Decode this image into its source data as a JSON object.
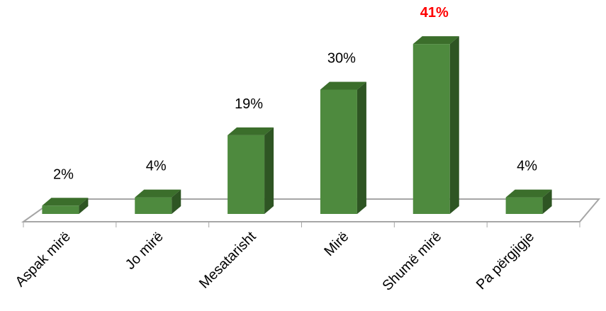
{
  "chart_data": {
    "type": "bar",
    "style": "3d-column",
    "categories": [
      "Aspak mirë",
      "Jo mirë",
      "Mesatarisht",
      "Mirë",
      "Shumë mirë",
      "Pa përgjigje"
    ],
    "values": [
      2,
      4,
      19,
      30,
      41,
      4
    ],
    "value_labels": [
      "2%",
      "4%",
      "19%",
      "30%",
      "41%",
      "4%"
    ],
    "unit": "%",
    "highlight_index": 4,
    "ylim": [
      0,
      41
    ],
    "grid": false,
    "legend": "none",
    "colors": {
      "bar_front": "#4e8a3e",
      "bar_top": "#3b6e2b",
      "bar_side": "#2e5523",
      "floor_line": "#a6a6a6",
      "label": "#000000",
      "highlight_label": "#ff0000"
    }
  }
}
